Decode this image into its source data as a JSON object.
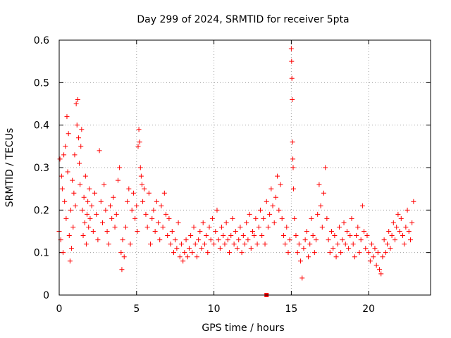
{
  "chart_data": {
    "type": "scatter",
    "title": "Day 299 of 2024, SRMTID for receiver 5pta",
    "xlabel": "GPS time / hours",
    "ylabel": "SRMTID / TECUs",
    "xlim": [
      0,
      24
    ],
    "ylim": [
      0,
      0.6
    ],
    "x_ticks": [
      0,
      5,
      10,
      15,
      20
    ],
    "x_tick_labels": [
      "0",
      "5",
      "10",
      "15",
      "20"
    ],
    "y_ticks": [
      0,
      0.1,
      0.2,
      0.3,
      0.4,
      0.5,
      0.6
    ],
    "y_tick_labels": [
      "0",
      "0.1",
      "0.2",
      "0.3",
      "0.4",
      "0.5",
      "0.6"
    ],
    "grid": true,
    "series": [
      {
        "name": "SRMTID",
        "marker": "plus",
        "color": "#ff0000",
        "points": [
          [
            0.0,
            0.15
          ],
          [
            0.05,
            0.32
          ],
          [
            0.1,
            0.13
          ],
          [
            0.15,
            0.28
          ],
          [
            0.2,
            0.25
          ],
          [
            0.25,
            0.1
          ],
          [
            0.3,
            0.33
          ],
          [
            0.35,
            0.22
          ],
          [
            0.4,
            0.35
          ],
          [
            0.45,
            0.18
          ],
          [
            0.5,
            0.42
          ],
          [
            0.55,
            0.29
          ],
          [
            0.6,
            0.38
          ],
          [
            0.65,
            0.14
          ],
          [
            0.7,
            0.08
          ],
          [
            0.75,
            0.2
          ],
          [
            0.8,
            0.11
          ],
          [
            0.85,
            0.27
          ],
          [
            0.9,
            0.16
          ],
          [
            0.95,
            0.24
          ],
          [
            1.0,
            0.33
          ],
          [
            1.05,
            0.21
          ],
          [
            1.1,
            0.45
          ],
          [
            1.15,
            0.4
          ],
          [
            1.2,
            0.46
          ],
          [
            1.25,
            0.37
          ],
          [
            1.3,
            0.31
          ],
          [
            1.35,
            0.26
          ],
          [
            1.4,
            0.35
          ],
          [
            1.45,
            0.39
          ],
          [
            1.5,
            0.2
          ],
          [
            1.55,
            0.14
          ],
          [
            1.6,
            0.23
          ],
          [
            1.65,
            0.17
          ],
          [
            1.7,
            0.28
          ],
          [
            1.75,
            0.12
          ],
          [
            1.8,
            0.19
          ],
          [
            1.85,
            0.22
          ],
          [
            1.9,
            0.16
          ],
          [
            1.95,
            0.25
          ],
          [
            2.0,
            0.18
          ],
          [
            2.1,
            0.21
          ],
          [
            2.2,
            0.15
          ],
          [
            2.3,
            0.24
          ],
          [
            2.4,
            0.19
          ],
          [
            2.5,
            0.13
          ],
          [
            2.6,
            0.34
          ],
          [
            2.7,
            0.22
          ],
          [
            2.8,
            0.17
          ],
          [
            2.9,
            0.26
          ],
          [
            3.0,
            0.2
          ],
          [
            3.1,
            0.15
          ],
          [
            3.2,
            0.12
          ],
          [
            3.3,
            0.21
          ],
          [
            3.4,
            0.18
          ],
          [
            3.5,
            0.23
          ],
          [
            3.6,
            0.16
          ],
          [
            3.7,
            0.19
          ],
          [
            3.8,
            0.27
          ],
          [
            3.9,
            0.3
          ],
          [
            4.0,
            0.1
          ],
          [
            4.05,
            0.06
          ],
          [
            4.1,
            0.13
          ],
          [
            4.2,
            0.09
          ],
          [
            4.3,
            0.16
          ],
          [
            4.4,
            0.22
          ],
          [
            4.5,
            0.25
          ],
          [
            4.6,
            0.12
          ],
          [
            4.7,
            0.2
          ],
          [
            4.8,
            0.24
          ],
          [
            4.9,
            0.18
          ],
          [
            5.0,
            0.21
          ],
          [
            5.05,
            0.15
          ],
          [
            5.1,
            0.35
          ],
          [
            5.15,
            0.39
          ],
          [
            5.2,
            0.36
          ],
          [
            5.25,
            0.3
          ],
          [
            5.3,
            0.28
          ],
          [
            5.35,
            0.26
          ],
          [
            5.4,
            0.22
          ],
          [
            5.5,
            0.25
          ],
          [
            5.6,
            0.19
          ],
          [
            5.7,
            0.16
          ],
          [
            5.8,
            0.24
          ],
          [
            5.9,
            0.12
          ],
          [
            6.0,
            0.18
          ],
          [
            6.1,
            0.2
          ],
          [
            6.2,
            0.15
          ],
          [
            6.3,
            0.22
          ],
          [
            6.4,
            0.17
          ],
          [
            6.5,
            0.13
          ],
          [
            6.6,
            0.21
          ],
          [
            6.7,
            0.16
          ],
          [
            6.8,
            0.24
          ],
          [
            6.9,
            0.19
          ],
          [
            7.0,
            0.14
          ],
          [
            7.1,
            0.18
          ],
          [
            7.2,
            0.12
          ],
          [
            7.3,
            0.15
          ],
          [
            7.4,
            0.1
          ],
          [
            7.5,
            0.13
          ],
          [
            7.6,
            0.11
          ],
          [
            7.7,
            0.17
          ],
          [
            7.8,
            0.09
          ],
          [
            7.9,
            0.12
          ],
          [
            8.0,
            0.08
          ],
          [
            8.1,
            0.1
          ],
          [
            8.2,
            0.13
          ],
          [
            8.3,
            0.09
          ],
          [
            8.4,
            0.11
          ],
          [
            8.5,
            0.14
          ],
          [
            8.6,
            0.1
          ],
          [
            8.7,
            0.16
          ],
          [
            8.8,
            0.12
          ],
          [
            8.9,
            0.09
          ],
          [
            9.0,
            0.13
          ],
          [
            9.1,
            0.15
          ],
          [
            9.2,
            0.11
          ],
          [
            9.3,
            0.17
          ],
          [
            9.4,
            0.12
          ],
          [
            9.5,
            0.14
          ],
          [
            9.6,
            0.1
          ],
          [
            9.7,
            0.16
          ],
          [
            9.8,
            0.13
          ],
          [
            9.9,
            0.18
          ],
          [
            10.0,
            0.12
          ],
          [
            10.1,
            0.15
          ],
          [
            10.2,
            0.2
          ],
          [
            10.3,
            0.13
          ],
          [
            10.4,
            0.11
          ],
          [
            10.5,
            0.16
          ],
          [
            10.6,
            0.14
          ],
          [
            10.7,
            0.12
          ],
          [
            10.8,
            0.17
          ],
          [
            10.9,
            0.13
          ],
          [
            11.0,
            0.1
          ],
          [
            11.1,
            0.14
          ],
          [
            11.2,
            0.18
          ],
          [
            11.3,
            0.12
          ],
          [
            11.4,
            0.15
          ],
          [
            11.5,
            0.11
          ],
          [
            11.6,
            0.13
          ],
          [
            11.7,
            0.16
          ],
          [
            11.8,
            0.1
          ],
          [
            11.9,
            0.14
          ],
          [
            12.0,
            0.12
          ],
          [
            12.1,
            0.17
          ],
          [
            12.2,
            0.13
          ],
          [
            12.3,
            0.19
          ],
          [
            12.4,
            0.11
          ],
          [
            12.5,
            0.15
          ],
          [
            12.6,
            0.14
          ],
          [
            12.7,
            0.18
          ],
          [
            12.8,
            0.12
          ],
          [
            12.9,
            0.16
          ],
          [
            13.0,
            0.2
          ],
          [
            13.1,
            0.14
          ],
          [
            13.2,
            0.18
          ],
          [
            13.3,
            0.12
          ],
          [
            13.4,
            0.22
          ],
          [
            13.5,
            0.16
          ],
          [
            13.6,
            0.19
          ],
          [
            13.7,
            0.25
          ],
          [
            13.8,
            0.21
          ],
          [
            13.9,
            0.17
          ],
          [
            14.0,
            0.23
          ],
          [
            14.1,
            0.28
          ],
          [
            14.2,
            0.2
          ],
          [
            14.3,
            0.26
          ],
          [
            14.4,
            0.18
          ],
          [
            14.5,
            0.14
          ],
          [
            14.6,
            0.12
          ],
          [
            14.7,
            0.16
          ],
          [
            14.8,
            0.1
          ],
          [
            14.9,
            0.13
          ],
          [
            15.0,
            0.58
          ],
          [
            15.02,
            0.55
          ],
          [
            15.04,
            0.51
          ],
          [
            15.06,
            0.46
          ],
          [
            15.08,
            0.36
          ],
          [
            15.1,
            0.32
          ],
          [
            15.12,
            0.3
          ],
          [
            15.14,
            0.25
          ],
          [
            15.2,
            0.18
          ],
          [
            15.3,
            0.14
          ],
          [
            15.4,
            0.1
          ],
          [
            15.5,
            0.12
          ],
          [
            15.6,
            0.08
          ],
          [
            15.7,
            0.04
          ],
          [
            15.8,
            0.11
          ],
          [
            15.9,
            0.13
          ],
          [
            16.0,
            0.15
          ],
          [
            16.1,
            0.09
          ],
          [
            16.2,
            0.12
          ],
          [
            16.3,
            0.18
          ],
          [
            16.4,
            0.14
          ],
          [
            16.5,
            0.1
          ],
          [
            16.6,
            0.13
          ],
          [
            16.7,
            0.19
          ],
          [
            16.8,
            0.26
          ],
          [
            16.9,
            0.21
          ],
          [
            17.0,
            0.16
          ],
          [
            17.1,
            0.24
          ],
          [
            17.2,
            0.3
          ],
          [
            17.3,
            0.18
          ],
          [
            17.4,
            0.13
          ],
          [
            17.5,
            0.1
          ],
          [
            17.6,
            0.15
          ],
          [
            17.7,
            0.11
          ],
          [
            17.8,
            0.14
          ],
          [
            17.9,
            0.09
          ],
          [
            18.0,
            0.12
          ],
          [
            18.1,
            0.16
          ],
          [
            18.2,
            0.1
          ],
          [
            18.3,
            0.13
          ],
          [
            18.4,
            0.17
          ],
          [
            18.5,
            0.12
          ],
          [
            18.6,
            0.15
          ],
          [
            18.7,
            0.11
          ],
          [
            18.8,
            0.14
          ],
          [
            18.9,
            0.18
          ],
          [
            19.0,
            0.12
          ],
          [
            19.1,
            0.09
          ],
          [
            19.2,
            0.14
          ],
          [
            19.3,
            0.16
          ],
          [
            19.4,
            0.1
          ],
          [
            19.5,
            0.13
          ],
          [
            19.6,
            0.21
          ],
          [
            19.7,
            0.15
          ],
          [
            19.8,
            0.11
          ],
          [
            19.9,
            0.14
          ],
          [
            20.0,
            0.1
          ],
          [
            20.1,
            0.08
          ],
          [
            20.2,
            0.12
          ],
          [
            20.3,
            0.09
          ],
          [
            20.4,
            0.11
          ],
          [
            20.5,
            0.07
          ],
          [
            20.6,
            0.1
          ],
          [
            20.7,
            0.06
          ],
          [
            20.8,
            0.05
          ],
          [
            20.9,
            0.09
          ],
          [
            21.0,
            0.13
          ],
          [
            21.1,
            0.1
          ],
          [
            21.2,
            0.12
          ],
          [
            21.3,
            0.15
          ],
          [
            21.4,
            0.11
          ],
          [
            21.5,
            0.14
          ],
          [
            21.6,
            0.17
          ],
          [
            21.7,
            0.13
          ],
          [
            21.8,
            0.16
          ],
          [
            21.9,
            0.19
          ],
          [
            22.0,
            0.15
          ],
          [
            22.1,
            0.18
          ],
          [
            22.2,
            0.14
          ],
          [
            22.3,
            0.12
          ],
          [
            22.4,
            0.16
          ],
          [
            22.5,
            0.2
          ],
          [
            22.6,
            0.15
          ],
          [
            22.7,
            0.13
          ],
          [
            22.8,
            0.17
          ],
          [
            22.9,
            0.22
          ]
        ]
      }
    ],
    "annotations": [
      {
        "type": "square",
        "x": 13.4,
        "y": 0.0,
        "color": "#ff0000"
      }
    ],
    "colors": {
      "series": "#ff0000",
      "grid": "#a0a0a0",
      "axes": "#000000",
      "background": "#ffffff"
    }
  }
}
